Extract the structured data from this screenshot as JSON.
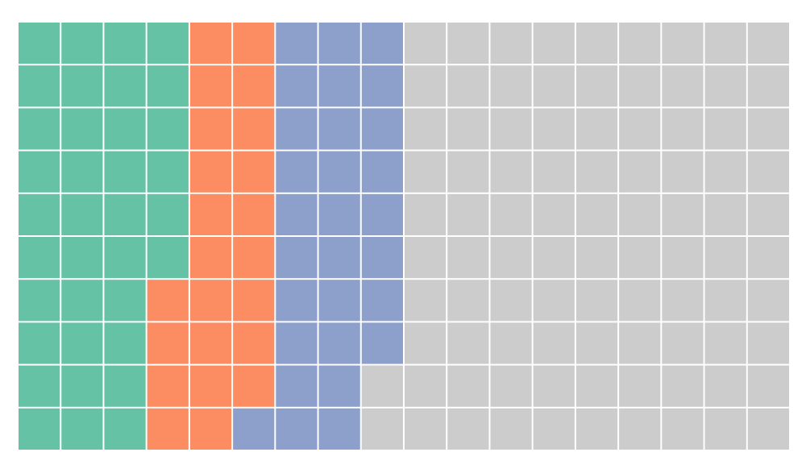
{
  "chart_data": {
    "type": "waffle",
    "rows": 10,
    "series": [
      {
        "color": "#66c2a5",
        "value": 36
      },
      {
        "color": "#fc8d62",
        "value": 23
      },
      {
        "color": "#8da0cb",
        "value": 29
      },
      {
        "color": "#cccccc",
        "value": 92
      }
    ]
  }
}
